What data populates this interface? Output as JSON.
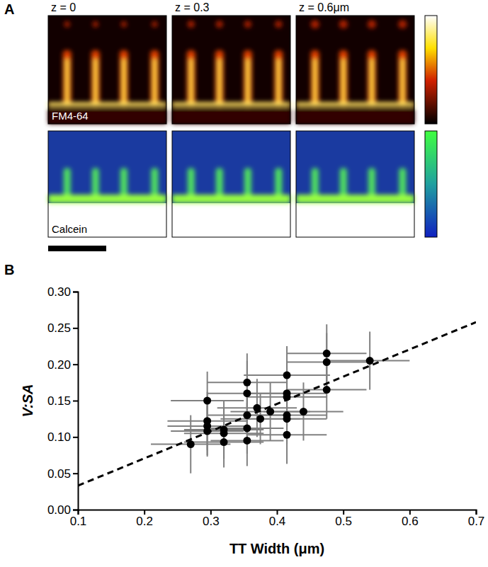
{
  "chart_data": [
    {
      "type": "image",
      "panel_label": "A",
      "column_labels": [
        "z = 0",
        "z = 0.3",
        "z = 0.6μm"
      ],
      "row_labels": [
        "FM4-64",
        "Calcein"
      ]
    },
    {
      "type": "scatter",
      "panel_label": "B",
      "x_label": "TT Width (μm)",
      "y_label": "V:SA",
      "xlim": [
        0.1,
        0.7
      ],
      "ylim": [
        0,
        0.3
      ],
      "xticks": [
        0.1,
        0.2,
        0.3,
        0.4,
        0.5,
        0.6,
        0.7
      ],
      "yticks": [
        {
          "value": 0,
          "label": "0.00"
        },
        {
          "value": 0.05,
          "label": "0.05"
        },
        {
          "value": 0.1,
          "label": "0.10"
        },
        {
          "value": 0.15,
          "label": "0.15"
        },
        {
          "value": 0.2,
          "label": "0.20"
        },
        {
          "value": 0.25,
          "label": "0.25"
        },
        {
          "value": 0.3,
          "label": "0.30"
        }
      ],
      "grid": false,
      "series": [
        {
          "type": "scatter",
          "marker": "circle",
          "color": "#000000",
          "x": [
            0.27,
            0.295,
            0.295,
            0.295,
            0.295,
            0.32,
            0.32,
            0.32,
            0.355,
            0.355,
            0.355,
            0.355,
            0.355,
            0.37,
            0.375,
            0.39,
            0.415,
            0.415,
            0.415,
            0.415,
            0.415,
            0.415,
            0.44,
            0.475,
            0.475,
            0.475,
            0.54
          ],
          "values": [
            0.09,
            0.15,
            0.122,
            0.115,
            0.108,
            0.11,
            0.105,
            0.093,
            0.175,
            0.16,
            0.13,
            0.112,
            0.095,
            0.14,
            0.125,
            0.135,
            0.185,
            0.16,
            0.155,
            0.13,
            0.125,
            0.103,
            0.135,
            0.215,
            0.203,
            0.165,
            0.205
          ],
          "x_error": [
            0.06,
            0.055,
            0.06,
            0.06,
            0.055,
            0.06,
            0.06,
            0.06,
            0.06,
            0.06,
            0.06,
            0.055,
            0.055,
            0.06,
            0.06,
            0.06,
            0.065,
            0.06,
            0.06,
            0.06,
            0.06,
            0.06,
            0.06,
            0.06,
            0.06,
            0.06,
            0.06
          ],
          "y_error": [
            0.04,
            0.04,
            0.04,
            0.04,
            0.035,
            0.04,
            0.035,
            0.035,
            0.04,
            0.045,
            0.04,
            0.035,
            0.035,
            0.04,
            0.035,
            0.04,
            0.04,
            0.045,
            0.04,
            0.04,
            0.035,
            0.04,
            0.04,
            0.04,
            0.04,
            0.04,
            0.04
          ]
        },
        {
          "type": "line",
          "line_style": "dashed",
          "color": "#000000",
          "x": [
            0.1,
            0.7
          ],
          "values": [
            0.033,
            0.258
          ]
        }
      ]
    }
  ]
}
